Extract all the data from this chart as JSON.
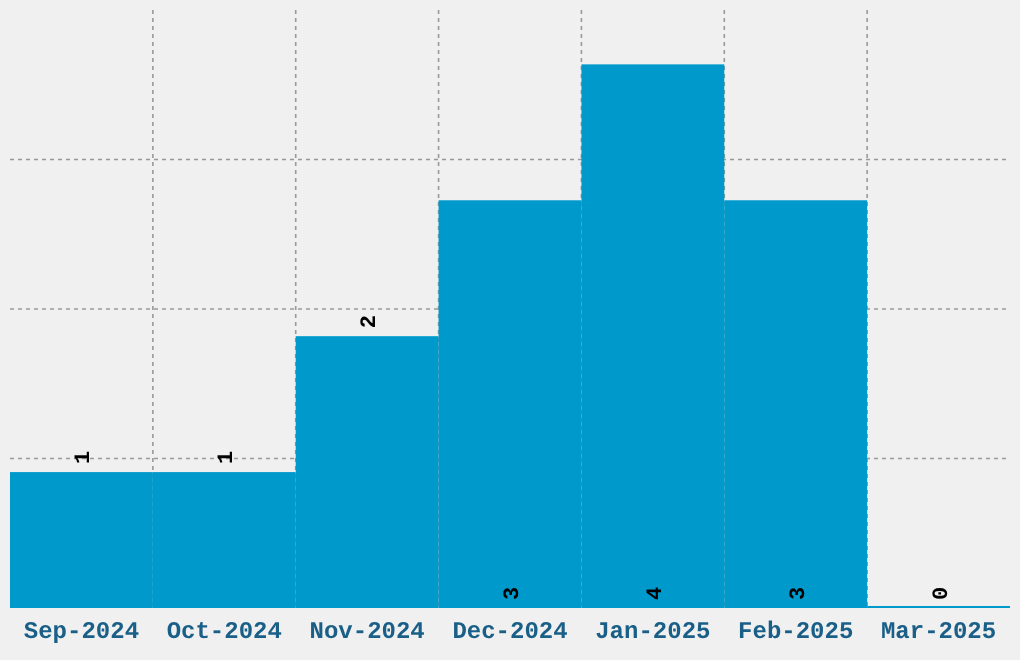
{
  "chart_data": {
    "type": "bar",
    "categories": [
      "Sep-2024",
      "Oct-2024",
      "Nov-2024",
      "Dec-2024",
      "Jan-2025",
      "Feb-2025",
      "Mar-2025"
    ],
    "values": [
      1,
      1,
      2,
      3,
      4,
      3,
      0
    ],
    "color": "#0099cc",
    "data_labels": true,
    "grid": true,
    "tick_labels": "x",
    "ylim": [
      0,
      4.4
    ],
    "yticks": [
      {
        "value": 1.1,
        "label": null
      },
      {
        "value": 2.2,
        "label": null
      },
      {
        "value": 3.3,
        "label": null
      }
    ]
  }
}
